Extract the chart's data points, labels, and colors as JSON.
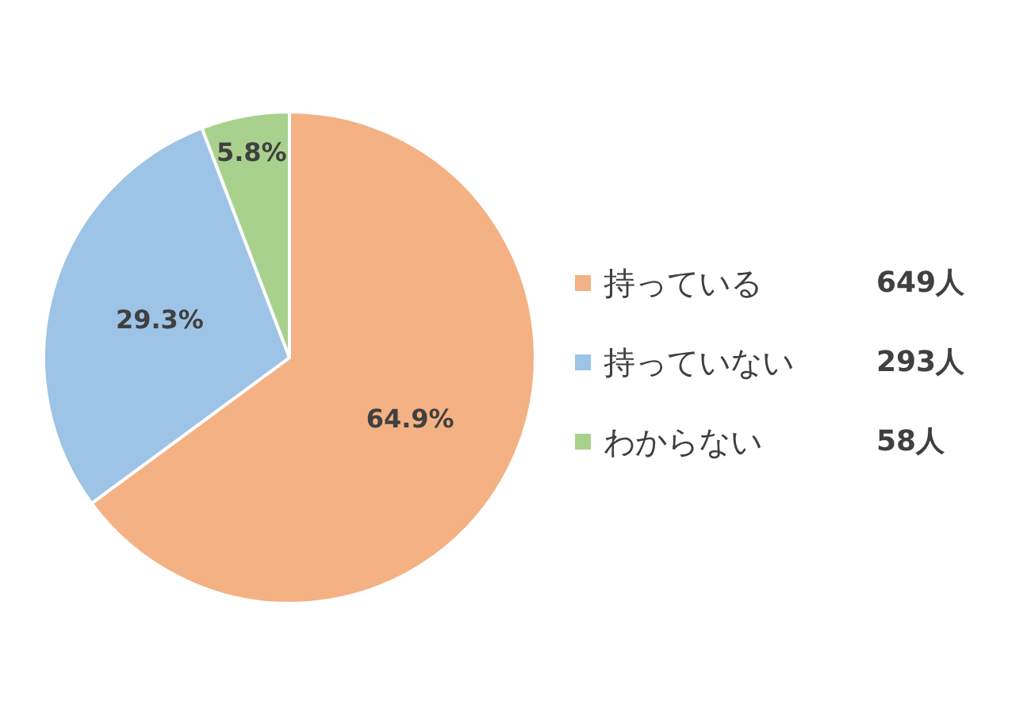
{
  "chart_data": {
    "type": "pie",
    "categories": [
      "持っている",
      "持っていない",
      "わからない"
    ],
    "values": [
      64.9,
      29.3,
      5.8
    ],
    "value_labels": [
      "64.9%",
      "29.3%",
      "5.8%"
    ],
    "colors": [
      "#f4b183",
      "#9dc3e6",
      "#a9d18e"
    ],
    "annotations": [
      "649人",
      "293人",
      "58人"
    ],
    "legend": "right"
  }
}
